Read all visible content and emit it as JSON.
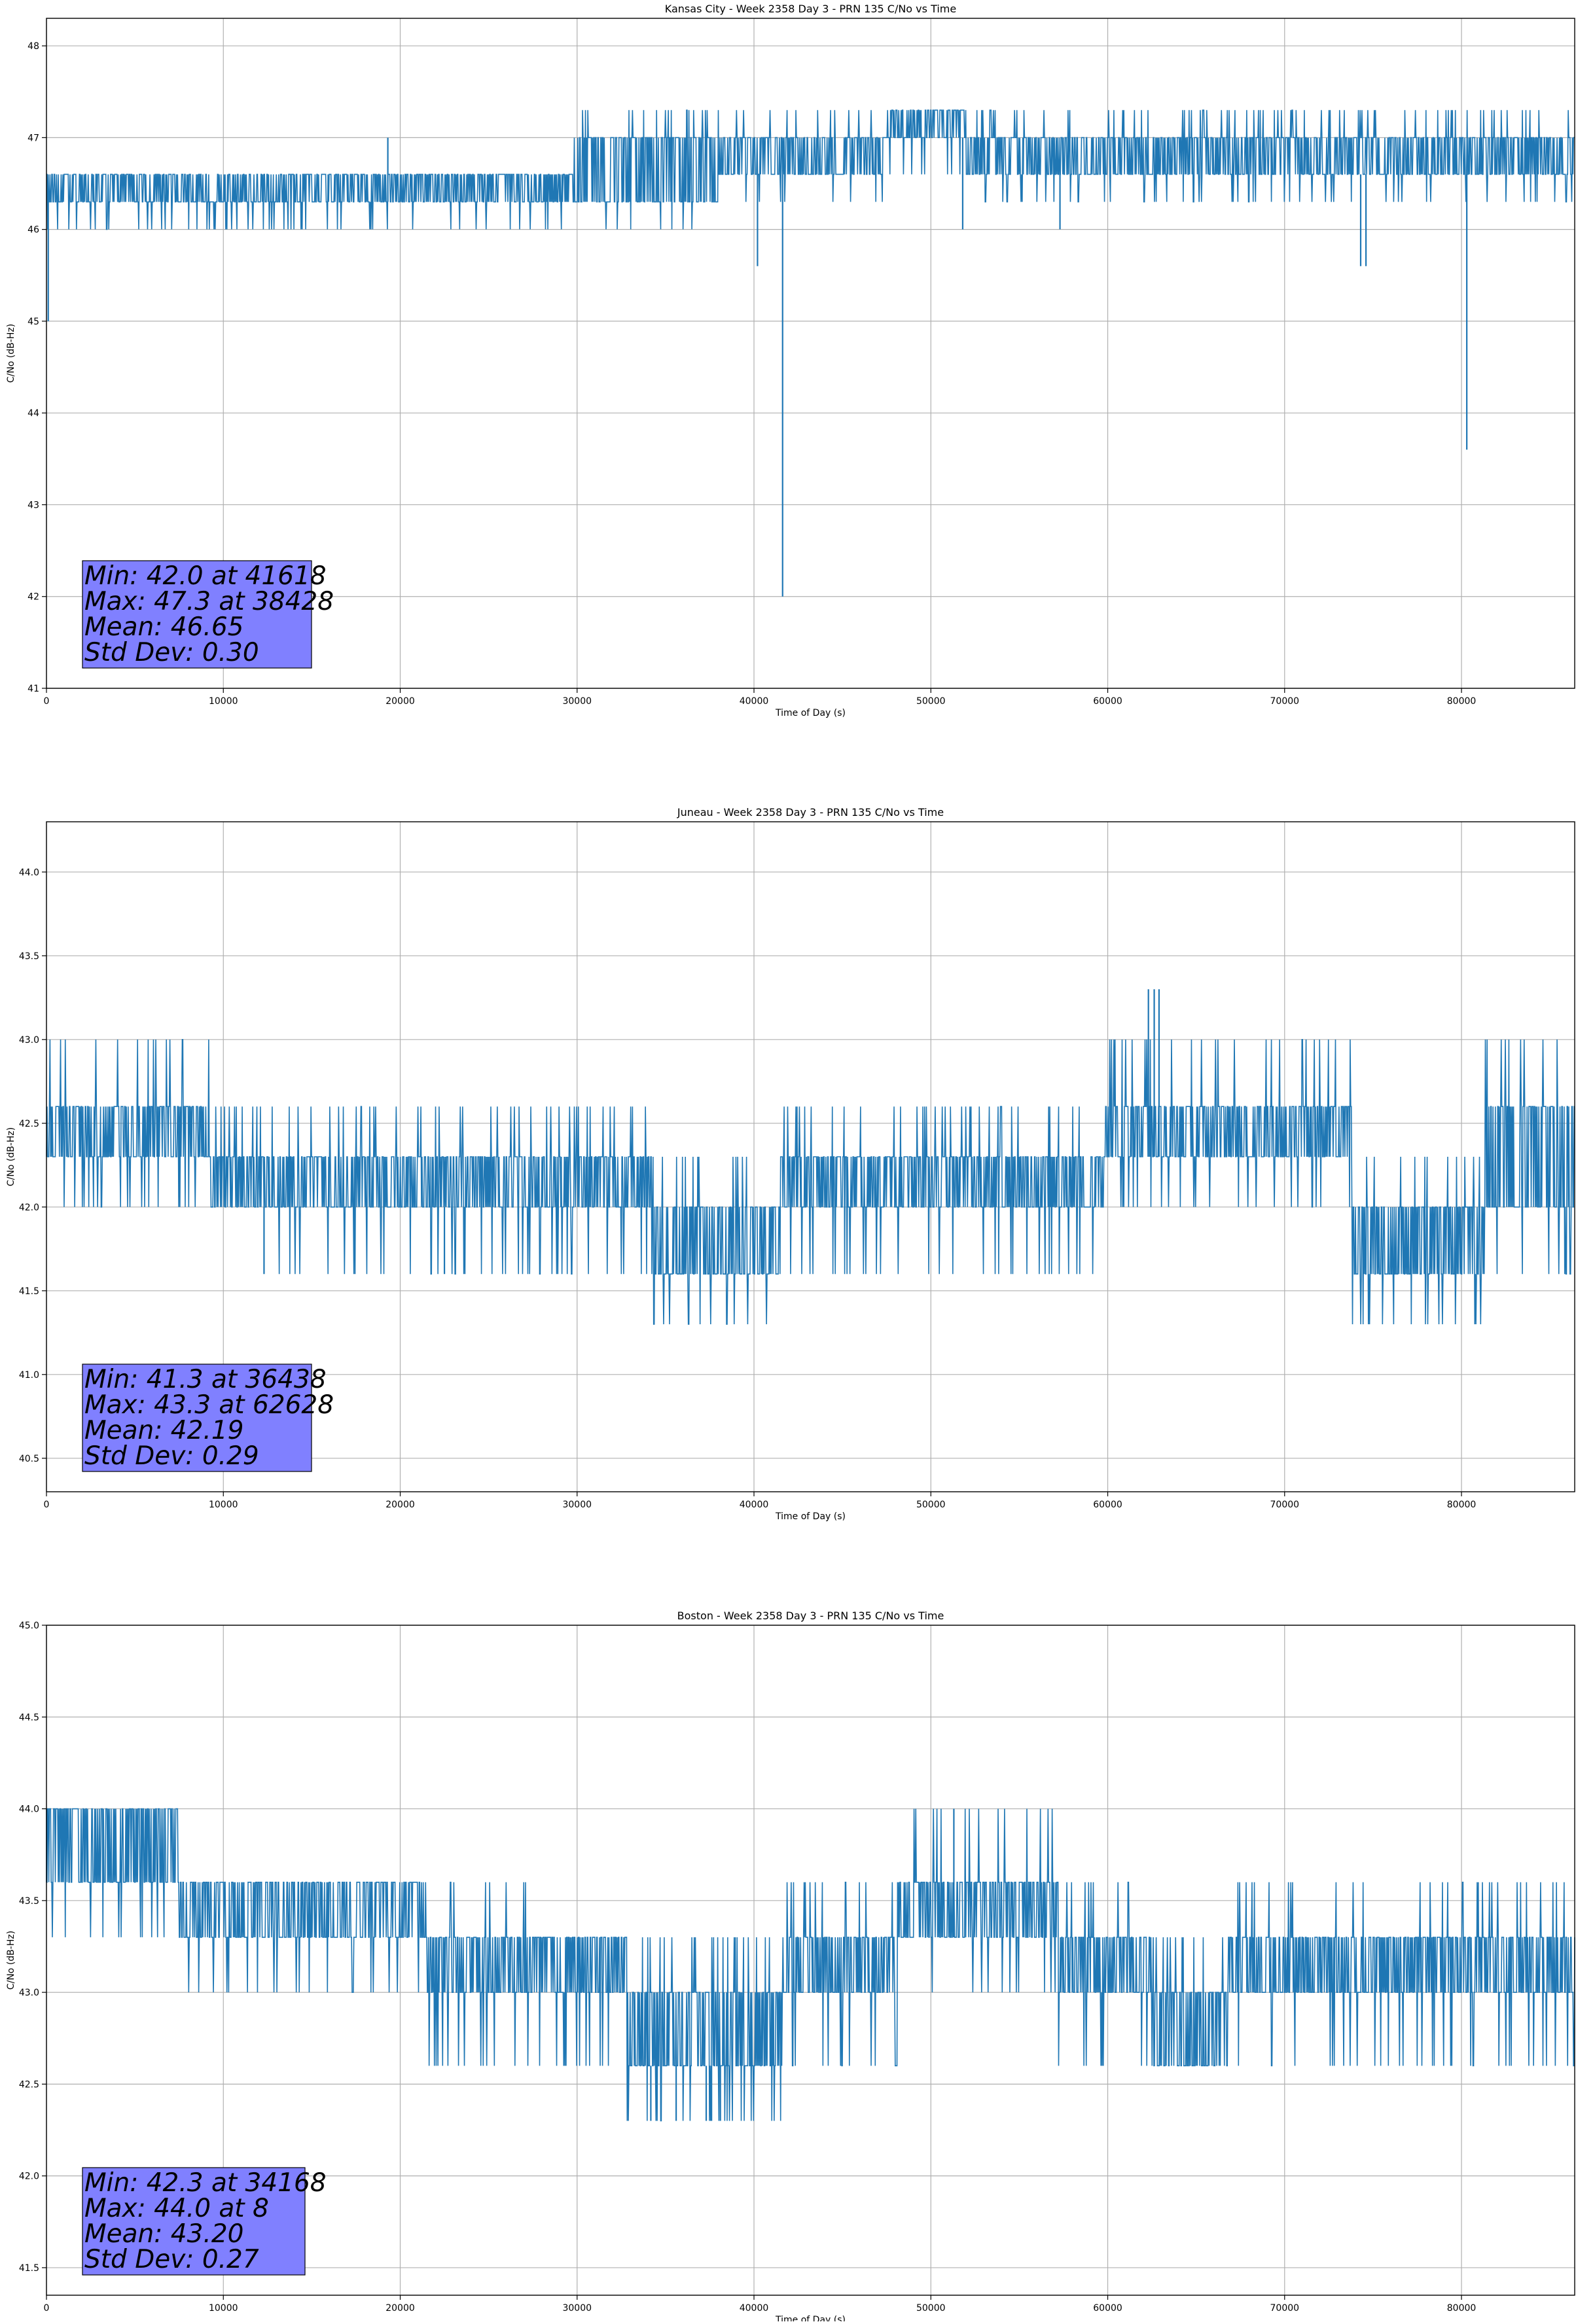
{
  "chart_data": [
    {
      "type": "line",
      "title": "Kansas City - Week 2358 Day 3 - PRN 135 C/No vs Time",
      "xlabel": "Time of Day (s)",
      "ylabel": "C/No (dB-Hz)",
      "xlim": [
        0,
        86400
      ],
      "ylim": [
        41,
        48.3
      ],
      "xticks": [
        0,
        10000,
        20000,
        30000,
        40000,
        50000,
        60000,
        70000,
        80000
      ],
      "yticks": [
        41,
        42,
        43,
        44,
        45,
        46,
        47,
        48
      ],
      "ytick_labels": [
        "41",
        "42",
        "43",
        "44",
        "45",
        "46",
        "47",
        "48"
      ],
      "grid": true,
      "line_color": "#1f77b4",
      "stats": {
        "min_label": "Min: 42.0 at 41618",
        "max_label": "Max: 47.3 at 38428",
        "mean_label": "Mean: 46.65",
        "std_label": "Std Dev: 0.30",
        "box_color": "#8080ff"
      },
      "segments": [
        {
          "from": 0,
          "to": 29800,
          "base": [
            46.3,
            46.6
          ],
          "dips": [
            46.0
          ],
          "rises": []
        },
        {
          "from": 29800,
          "to": 38000,
          "base": [
            46.3,
            47.0
          ],
          "dips": [
            46.0
          ],
          "rises": [
            47.3
          ]
        },
        {
          "from": 38000,
          "to": 47500,
          "base": [
            46.6,
            47.0
          ],
          "dips": [
            46.3
          ],
          "rises": [
            47.3
          ]
        },
        {
          "from": 47500,
          "to": 52000,
          "base": [
            47.0,
            47.3
          ],
          "dips": [
            46.6
          ],
          "rises": []
        },
        {
          "from": 52000,
          "to": 86400,
          "base": [
            46.6,
            47.0
          ],
          "dips": [
            46.3
          ],
          "rises": [
            47.3
          ]
        }
      ],
      "spikes": [
        {
          "x": 100,
          "y": 45.0
        },
        {
          "x": 19300,
          "y": 47.0
        },
        {
          "x": 40200,
          "y": 45.6
        },
        {
          "x": 41618,
          "y": 42.0
        },
        {
          "x": 51800,
          "y": 46.0
        },
        {
          "x": 57300,
          "y": 46.0
        },
        {
          "x": 74300,
          "y": 45.6
        },
        {
          "x": 74600,
          "y": 45.6
        },
        {
          "x": 80300,
          "y": 43.6
        }
      ]
    },
    {
      "type": "line",
      "title": "Juneau - Week 2358 Day 3 - PRN 135 C/No vs Time",
      "xlabel": "Time of Day (s)",
      "ylabel": "C/No (dB-Hz)",
      "xlim": [
        0,
        86400
      ],
      "ylim": [
        40.3,
        44.3
      ],
      "xticks": [
        0,
        10000,
        20000,
        30000,
        40000,
        50000,
        60000,
        70000,
        80000
      ],
      "yticks": [
        40.5,
        41.0,
        41.5,
        42.0,
        42.5,
        43.0,
        43.5,
        44.0
      ],
      "ytick_labels": [
        "40.5",
        "41.0",
        "41.5",
        "42.0",
        "42.5",
        "43.0",
        "43.5",
        "44.0"
      ],
      "grid": true,
      "line_color": "#1f77b4",
      "stats": {
        "min_label": "Min: 41.3 at 36438",
        "max_label": "Max: 43.3 at 62628",
        "mean_label": "Mean: 42.19",
        "std_label": "Std Dev: 0.29",
        "box_color": "#8080ff"
      },
      "segments": [
        {
          "from": 0,
          "to": 9300,
          "base": [
            42.3,
            42.6
          ],
          "dips": [
            42.0
          ],
          "rises": [
            43.0
          ]
        },
        {
          "from": 9300,
          "to": 34200,
          "base": [
            42.0,
            42.3
          ],
          "dips": [
            41.6
          ],
          "rises": [
            42.6
          ]
        },
        {
          "from": 34200,
          "to": 41500,
          "base": [
            41.6,
            42.0
          ],
          "dips": [
            41.3
          ],
          "rises": [
            42.3
          ]
        },
        {
          "from": 41500,
          "to": 59800,
          "base": [
            42.0,
            42.3
          ],
          "dips": [
            41.6
          ],
          "rises": [
            42.6
          ]
        },
        {
          "from": 59800,
          "to": 73800,
          "base": [
            42.3,
            42.6
          ],
          "dips": [
            42.0
          ],
          "rises": [
            43.0
          ]
        },
        {
          "from": 73800,
          "to": 81300,
          "base": [
            41.6,
            42.0
          ],
          "dips": [
            41.3
          ],
          "rises": [
            42.3
          ]
        },
        {
          "from": 81300,
          "to": 86400,
          "base": [
            42.0,
            42.6
          ],
          "dips": [
            41.6
          ],
          "rises": [
            43.0
          ]
        }
      ],
      "spikes": [
        {
          "x": 12300,
          "y": 41.6
        },
        {
          "x": 22500,
          "y": 41.6
        },
        {
          "x": 62300,
          "y": 43.3
        },
        {
          "x": 62628,
          "y": 43.3
        },
        {
          "x": 62900,
          "y": 43.3
        }
      ]
    },
    {
      "type": "line",
      "title": "Boston - Week 2358 Day 3 - PRN 135 C/No vs Time",
      "xlabel": "Time of Day (s)",
      "ylabel": "C/No (dB-Hz)",
      "xlim": [
        0,
        86400
      ],
      "ylim": [
        41.35,
        45.0
      ],
      "xticks": [
        0,
        10000,
        20000,
        30000,
        40000,
        50000,
        60000,
        70000,
        80000
      ],
      "yticks": [
        41.5,
        42.0,
        42.5,
        43.0,
        43.5,
        44.0,
        44.5,
        45.0
      ],
      "ytick_labels": [
        "41.5",
        "42.0",
        "42.5",
        "43.0",
        "43.5",
        "44.0",
        "44.5",
        "45.0"
      ],
      "grid": true,
      "line_color": "#1f77b4",
      "stats": {
        "min_label": "Min: 42.3 at 34168",
        "max_label": "Max: 44.0 at 8",
        "mean_label": "Mean: 43.20",
        "std_label": "Std Dev: 0.27",
        "box_color": "#8080ff"
      },
      "segments": [
        {
          "from": 0,
          "to": 7500,
          "base": [
            43.6,
            44.0
          ],
          "dips": [
            43.3
          ],
          "rises": [
            44.0
          ]
        },
        {
          "from": 7500,
          "to": 21500,
          "base": [
            43.3,
            43.6
          ],
          "dips": [
            43.0
          ],
          "rises": []
        },
        {
          "from": 21500,
          "to": 27200,
          "base": [
            43.0,
            43.3
          ],
          "dips": [
            42.6
          ],
          "rises": [
            43.6
          ]
        },
        {
          "from": 27200,
          "to": 32800,
          "base": [
            43.0,
            43.3
          ],
          "dips": [
            42.6
          ],
          "rises": []
        },
        {
          "from": 32800,
          "to": 41700,
          "base": [
            42.6,
            43.0
          ],
          "dips": [
            42.3
          ],
          "rises": [
            43.3
          ]
        },
        {
          "from": 41700,
          "to": 48100,
          "base": [
            43.0,
            43.3
          ],
          "dips": [
            42.6
          ],
          "rises": [
            43.6
          ]
        },
        {
          "from": 48100,
          "to": 57200,
          "base": [
            43.3,
            43.6
          ],
          "dips": [
            43.0
          ],
          "rises": [
            44.0
          ]
        },
        {
          "from": 57200,
          "to": 62500,
          "base": [
            43.0,
            43.3
          ],
          "dips": [
            42.6
          ],
          "rises": [
            43.6
          ]
        },
        {
          "from": 62500,
          "to": 66800,
          "base": [
            42.6,
            43.0
          ],
          "dips": [],
          "rises": [
            43.3
          ]
        },
        {
          "from": 66800,
          "to": 86400,
          "base": [
            43.0,
            43.3
          ],
          "dips": [
            42.6
          ],
          "rises": [
            43.6
          ]
        }
      ],
      "spikes": [
        {
          "x": 8,
          "y": 44.0
        },
        {
          "x": 34168,
          "y": 42.3
        },
        {
          "x": 35600,
          "y": 42.3
        },
        {
          "x": 37300,
          "y": 42.3
        },
        {
          "x": 37600,
          "y": 42.3
        },
        {
          "x": 38100,
          "y": 42.3
        },
        {
          "x": 51300,
          "y": 44.0
        }
      ]
    }
  ]
}
